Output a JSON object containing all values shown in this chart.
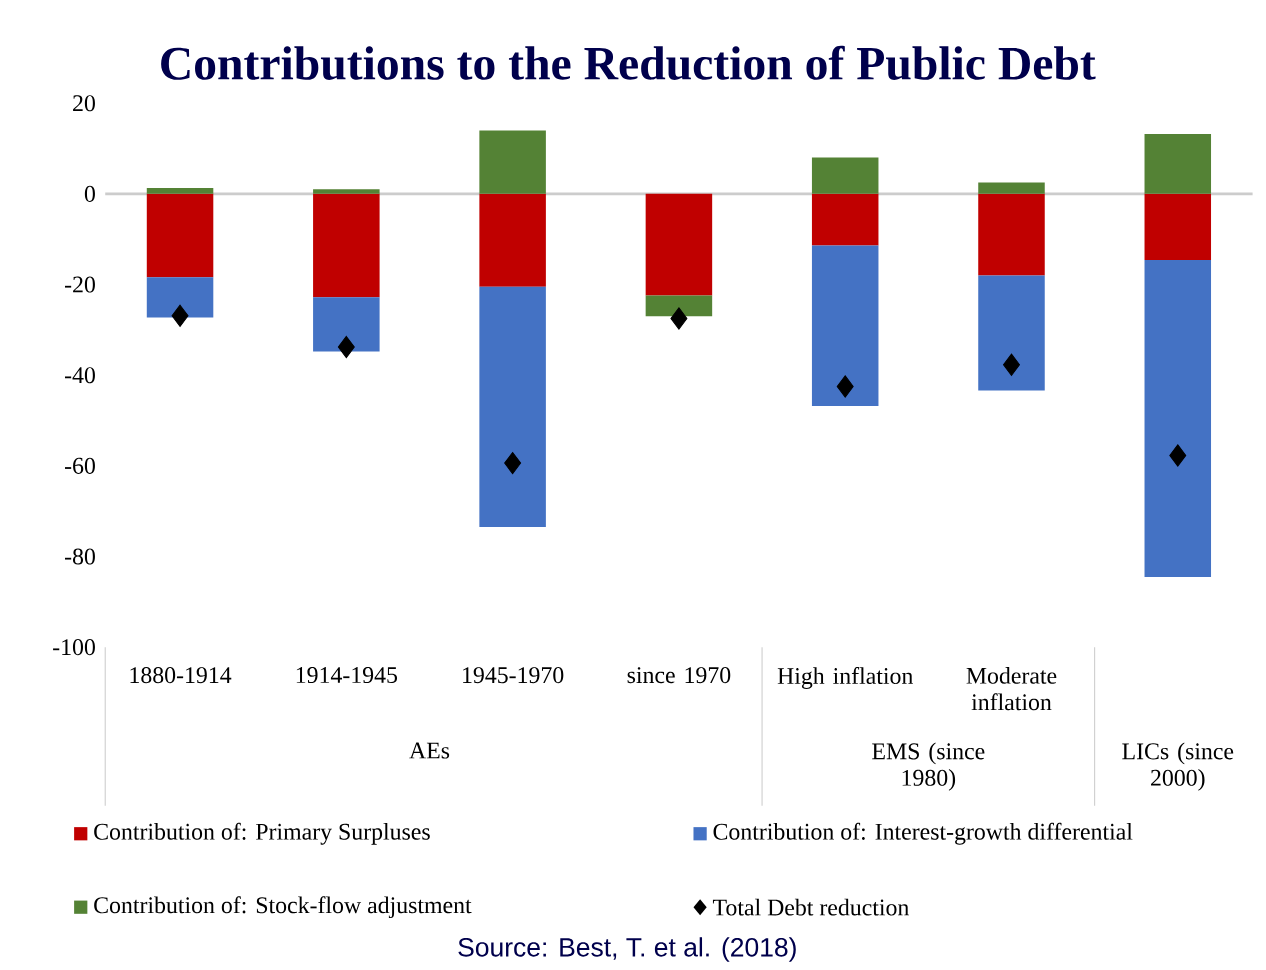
{
  "chart_data": {
    "type": "bar",
    "stacked": true,
    "title": "Contributions to the Reduction of Public Debt",
    "categories": [
      "1880-1914",
      "1914-1945",
      "1945-1970",
      "since 1970",
      "High inflation",
      "Moderate inflation",
      null
    ],
    "ylim": [
      -100,
      20
    ],
    "yticks": [
      20,
      0,
      -20,
      -40,
      -60,
      -80,
      -100
    ],
    "legend": "bottom",
    "series": [
      {
        "name": "Contribution of: Primary Surpluses",
        "color": "#c00000",
        "values": [
          -18.4,
          -22.8,
          -20.5,
          -22.4,
          -11.4,
          -18.0,
          -14.6
        ]
      },
      {
        "name": "Contribution of: Interest-growth differential",
        "color": "#4472c4",
        "values": [
          -8.9,
          -12.0,
          -53.0,
          0,
          -35.4,
          -25.4,
          -69.9
        ]
      },
      {
        "name": "Contribution of: Stock-flow adjustment",
        "color": "#548235",
        "values": [
          1.3,
          1.0,
          14.0,
          -4.6,
          8.0,
          2.5,
          13.2
        ]
      },
      {
        "name": "Total Debt reduction",
        "type": "scatter",
        "marker": "diamond",
        "color": "#000000",
        "values": [
          -26.9,
          -33.8,
          -59.4,
          -27.5,
          -42.5,
          -37.7,
          -57.7
        ]
      }
    ],
    "annotations": [
      "AEs",
      "EMS (since 1980)",
      "LICs (since 2000)",
      "Source: Best, T. et al. (2018)"
    ]
  }
}
